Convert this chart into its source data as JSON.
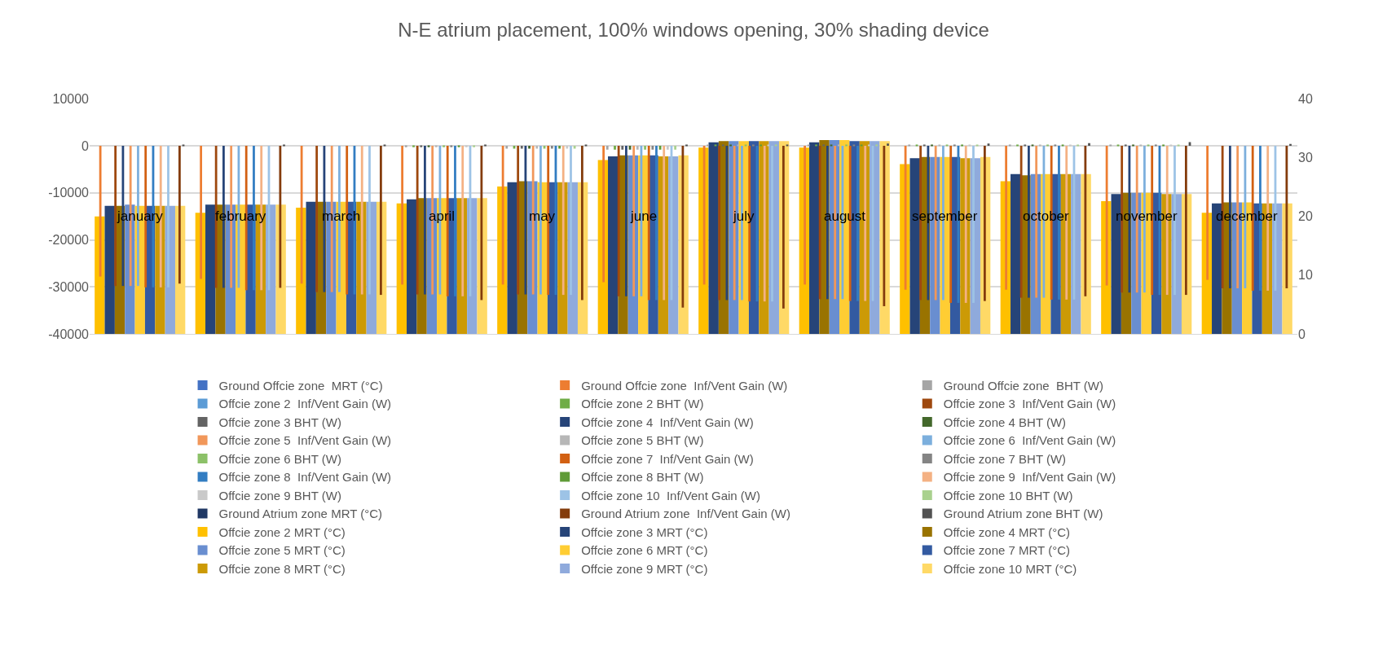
{
  "chart_data": {
    "type": "bar",
    "title": "N-E atrium placement, 100% windows opening, 30% shading device",
    "categories": [
      "january",
      "february",
      "march",
      "april",
      "may",
      "june",
      "july",
      "august",
      "september",
      "october",
      "november",
      "december"
    ],
    "ylim": [
      -40000,
      10000
    ],
    "yticks": [
      -40000,
      -30000,
      -20000,
      -10000,
      0,
      10000
    ],
    "y2lim": [
      0,
      40
    ],
    "y2ticks": [
      0,
      10,
      20,
      30,
      40
    ],
    "grid": "y",
    "legend": "bottom",
    "series": [
      {
        "name": "Ground Offcie zone  MRT (°C)",
        "color": "#4472c4",
        "values": [
          null,
          null,
          null,
          null,
          null,
          null,
          null,
          null,
          null,
          null,
          null,
          null
        ]
      },
      {
        "name": "Ground Offcie zone  Inf/Vent Gain (W)",
        "color": "#ed7d31",
        "values": [
          -27800,
          -28300,
          -29300,
          -29500,
          -29500,
          -29000,
          -29500,
          -29500,
          -30600,
          -30600,
          -29700,
          -28500
        ]
      },
      {
        "name": "Ground Offcie zone  BHT (W)",
        "color": "#a5a5a5",
        "values": [
          0,
          0,
          0,
          -300,
          -600,
          -800,
          300,
          300,
          300,
          300,
          300,
          0
        ]
      },
      {
        "name": "Offcie zone 2  Inf/Vent Gain (W)",
        "color": "#5b9bd5",
        "values": [
          null,
          null,
          null,
          null,
          null,
          null,
          null,
          null,
          null,
          null,
          null,
          null
        ]
      },
      {
        "name": "Offcie zone 2 BHT (W)",
        "color": "#70ad47",
        "values": [
          0,
          0,
          0,
          -300,
          -600,
          -800,
          300,
          300,
          300,
          300,
          300,
          0
        ]
      },
      {
        "name": "Offcie zone 3  Inf/Vent Gain (W)",
        "color": "#9e480e",
        "values": [
          -29800,
          -30200,
          -31100,
          -31600,
          -31600,
          -32000,
          -32800,
          -32600,
          -32800,
          -32300,
          -31200,
          -30300
        ]
      },
      {
        "name": "Offcie zone 3 BHT (W)",
        "color": "#636363",
        "values": [
          0,
          0,
          0,
          -300,
          -600,
          -800,
          300,
          300,
          300,
          300,
          300,
          0
        ]
      },
      {
        "name": "Offcie zone 4  Inf/Vent Gain (W)",
        "color": "#264478",
        "values": [
          -29800,
          -30200,
          -31100,
          -31600,
          -31600,
          -32000,
          -32800,
          -32600,
          -32800,
          -32300,
          -31200,
          -30300
        ]
      },
      {
        "name": "Offcie zone 4 BHT (W)",
        "color": "#43682b",
        "values": [
          0,
          0,
          0,
          -300,
          -600,
          -800,
          300,
          300,
          300,
          300,
          300,
          0
        ]
      },
      {
        "name": "Offcie zone 5  Inf/Vent Gain (W)",
        "color": "#f1975a",
        "values": [
          -29800,
          -30200,
          -31100,
          -31600,
          -31600,
          -32000,
          -32800,
          -32600,
          -32800,
          -32300,
          -31200,
          -30300
        ]
      },
      {
        "name": "Offcie zone 5 BHT (W)",
        "color": "#b7b7b7",
        "values": [
          0,
          0,
          0,
          -300,
          -600,
          -800,
          300,
          300,
          300,
          300,
          300,
          0
        ]
      },
      {
        "name": "Offcie zone 6  Inf/Vent Gain (W)",
        "color": "#7cafdd",
        "values": [
          -29800,
          -30200,
          -31100,
          -31600,
          -31600,
          -32000,
          -32800,
          -32600,
          -32800,
          -32300,
          -31200,
          -30300
        ]
      },
      {
        "name": "Offcie zone 6 BHT (W)",
        "color": "#8cc168",
        "values": [
          0,
          0,
          0,
          -300,
          -600,
          -800,
          300,
          300,
          300,
          300,
          300,
          0
        ]
      },
      {
        "name": "Offcie zone 7  Inf/Vent Gain (W)",
        "color": "#d26012",
        "values": [
          -30100,
          -30700,
          -31600,
          -32000,
          -31700,
          -32800,
          -33100,
          -33000,
          -33400,
          -32700,
          -31700,
          -30800
        ]
      },
      {
        "name": "Offcie zone 7 BHT (W)",
        "color": "#848484",
        "values": [
          0,
          0,
          0,
          -300,
          -600,
          -800,
          300,
          300,
          300,
          300,
          300,
          0
        ]
      },
      {
        "name": "Offcie zone 8  Inf/Vent Gain (W)",
        "color": "#327dc2",
        "values": [
          -30100,
          -30700,
          -31600,
          -32000,
          -31700,
          -32800,
          -33100,
          -33000,
          -33400,
          -32700,
          -31700,
          -30800
        ]
      },
      {
        "name": "Offcie zone 8 BHT (W)",
        "color": "#5f9b37",
        "values": [
          0,
          0,
          0,
          -300,
          -600,
          -800,
          300,
          300,
          300,
          300,
          300,
          0
        ]
      },
      {
        "name": "Offcie zone 9  Inf/Vent Gain (W)",
        "color": "#f4b183",
        "values": [
          -30100,
          -30700,
          -31600,
          -32000,
          -31700,
          -32800,
          -33100,
          -33000,
          -33400,
          -32700,
          -31700,
          -30800
        ]
      },
      {
        "name": "Offcie zone 9 BHT (W)",
        "color": "#c9c9c9",
        "values": [
          0,
          0,
          0,
          -300,
          -600,
          -800,
          300,
          300,
          300,
          300,
          300,
          0
        ]
      },
      {
        "name": "Offcie zone 10  Inf/Vent Gain (W)",
        "color": "#9dc3e6",
        "values": [
          -30100,
          -30700,
          -31600,
          -32000,
          -31700,
          -32800,
          -33100,
          -33000,
          -33400,
          -32700,
          -31700,
          -30800
        ]
      },
      {
        "name": "Offcie zone 10 BHT (W)",
        "color": "#a9d18e",
        "values": [
          0,
          0,
          0,
          -300,
          -600,
          -800,
          300,
          300,
          300,
          300,
          300,
          0
        ]
      },
      {
        "name": "Ground Atrium zone MRT (°C)",
        "color": "#203864",
        "values": [
          null,
          null,
          null,
          null,
          null,
          null,
          null,
          null,
          null,
          null,
          null,
          null
        ]
      },
      {
        "name": "Ground Atrium zone  Inf/Vent Gain (W)",
        "color": "#843c0c",
        "values": [
          -29300,
          -30200,
          -31700,
          -32800,
          -32800,
          -34400,
          -34600,
          -34100,
          -33000,
          -32000,
          -31700,
          -30300
        ]
      },
      {
        "name": "Ground Atrium zone BHT (W)",
        "color": "#525252",
        "values": [
          300,
          300,
          300,
          300,
          200,
          200,
          200,
          500,
          500,
          600,
          800,
          400
        ]
      },
      {
        "name": "Offcie zone 2 MRT (°C)",
        "color": "#ffc000",
        "axis": "y2",
        "values": [
          20.0,
          20.6,
          21.5,
          22.2,
          25.1,
          29.6,
          31.7,
          31.7,
          28.9,
          26.0,
          22.6,
          20.6
        ]
      },
      {
        "name": "Offcie zone 3 MRT (°C)",
        "color": "#264478",
        "axis": "y2",
        "values": [
          21.8,
          22.0,
          22.5,
          22.9,
          25.8,
          30.2,
          32.6,
          32.6,
          29.9,
          27.2,
          23.8,
          22.2
        ]
      },
      {
        "name": "Offcie zone 4 MRT (°C)",
        "color": "#997300",
        "axis": "y2",
        "values": [
          21.8,
          22.0,
          22.5,
          23.1,
          26.0,
          30.4,
          32.8,
          33.0,
          30.1,
          27.0,
          24.0,
          22.4
        ]
      },
      {
        "name": "Offcie zone 5 MRT (°C)",
        "color": "#698ed0",
        "axis": "y2",
        "values": [
          22.0,
          22.0,
          22.5,
          23.1,
          26.0,
          30.4,
          32.8,
          33.0,
          30.1,
          27.2,
          24.0,
          22.4
        ]
      },
      {
        "name": "Offcie zone 6 MRT (°C)",
        "color": "#ffcd33",
        "axis": "y2",
        "values": [
          21.8,
          22.0,
          22.5,
          23.1,
          25.8,
          30.4,
          32.8,
          33.0,
          30.1,
          27.2,
          24.0,
          22.4
        ]
      },
      {
        "name": "Offcie zone 7 MRT (°C)",
        "color": "#335aa1",
        "axis": "y2",
        "values": [
          21.8,
          22.0,
          22.5,
          23.1,
          25.8,
          30.4,
          32.8,
          32.8,
          30.1,
          27.2,
          24.0,
          22.2
        ]
      },
      {
        "name": "Offcie zone 8 MRT (°C)",
        "color": "#cc9a06",
        "axis": "y2",
        "values": [
          21.8,
          22.0,
          22.5,
          23.1,
          25.8,
          30.2,
          32.8,
          32.8,
          29.9,
          27.2,
          23.8,
          22.2
        ]
      },
      {
        "name": "Offcie zone 9 MRT (°C)",
        "color": "#8faadc",
        "axis": "y2",
        "values": [
          21.8,
          22.0,
          22.5,
          23.1,
          25.8,
          30.2,
          32.8,
          32.8,
          29.9,
          27.2,
          23.8,
          22.2
        ]
      },
      {
        "name": "Offcie zone 10 MRT (°C)",
        "color": "#ffd966",
        "axis": "y2",
        "values": [
          21.8,
          22.0,
          22.5,
          23.1,
          25.8,
          30.4,
          32.8,
          32.8,
          30.1,
          27.2,
          23.8,
          22.2
        ]
      }
    ]
  }
}
